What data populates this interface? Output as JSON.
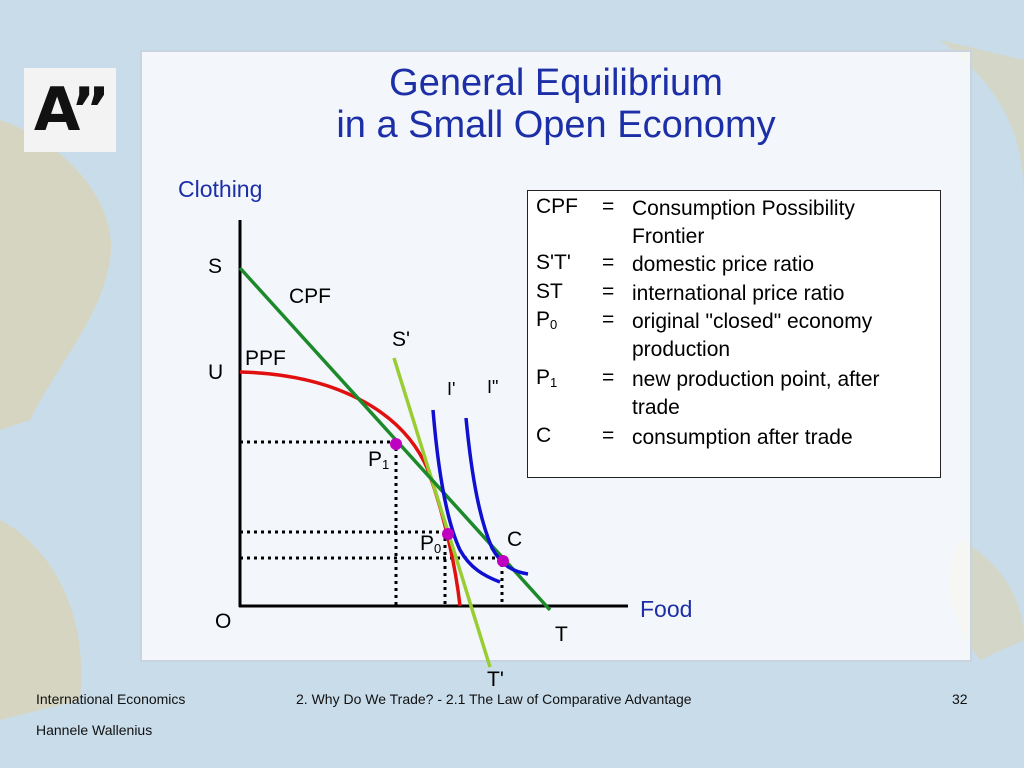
{
  "slide": {
    "logo_text": "A”",
    "title_line1": "General Equilibrium",
    "title_line2": "in a Small Open Economy"
  },
  "diagram": {
    "y_axis_label": "Clothing",
    "x_axis_label": "Food",
    "origin_label": "O",
    "labels": {
      "S": "S",
      "U": "U",
      "CPF": "CPF",
      "PPF": "PPF",
      "S_prime": "S'",
      "I_prime": "I'",
      "I_dprime": "I\"",
      "P1": "P",
      "P1_sub": "1",
      "P0": "P",
      "P0_sub": "0",
      "C": "C",
      "T": "T",
      "T_prime": "T'"
    },
    "colors": {
      "ppf": "#e01010",
      "st": "#1c8a2a",
      "s_prime_t_prime": "#9acd32",
      "indifference": "#1010d0",
      "points": "#c000c0"
    }
  },
  "legend": [
    {
      "key": "CPF",
      "sub": "",
      "eq": "=",
      "desc": "Consumption Possibility Frontier"
    },
    {
      "key": "S'T'",
      "sub": "",
      "eq": "=",
      "desc": "domestic price ratio"
    },
    {
      "key": "ST",
      "sub": "",
      "eq": "=",
      "desc": "international price ratio"
    },
    {
      "key": "P",
      "sub": "0",
      "eq": "=",
      "desc": "original \"closed\" economy production"
    },
    {
      "key": "P",
      "sub": "1",
      "eq": "=",
      "desc": "new production point, after trade"
    },
    {
      "key": "C",
      "sub": "",
      "eq": "=",
      "desc": "consumption after trade"
    }
  ],
  "footer": {
    "course": "International Economics",
    "author": "Hannele Wallenius",
    "section": "2. Why Do We Trade? - 2.1 The Law of Comparative Advantage",
    "page": "32"
  }
}
